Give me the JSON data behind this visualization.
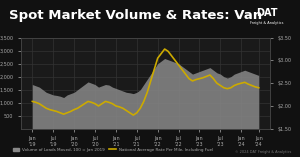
{
  "title": "Spot Market Volume & Rates: Van",
  "background_color": "#111111",
  "plot_bg_color": "#1a1a1a",
  "grid_color": "#333333",
  "title_color": "#ffffff",
  "title_fontsize": 9.5,
  "left_ylabel": "Volume of Loads Moved, 100 = Jan 2019",
  "right_ylabel": "National Average Rate Per Mile, Including Fuel",
  "yleft_min": 0,
  "yleft_max": 3500,
  "yright_min": 1.5,
  "yright_max": 3.5,
  "area_color": "#888888",
  "line_color": "#ccaa00",
  "dat_box_color": "#1155cc",
  "legend_items": [
    "Volume of Loads Moved, 100 = Jan 2019",
    "National Average Rate Per Mile, Including Fuel"
  ],
  "copyright": "© 2024 DAT Freight & Analytics",
  "n_points": 66
}
